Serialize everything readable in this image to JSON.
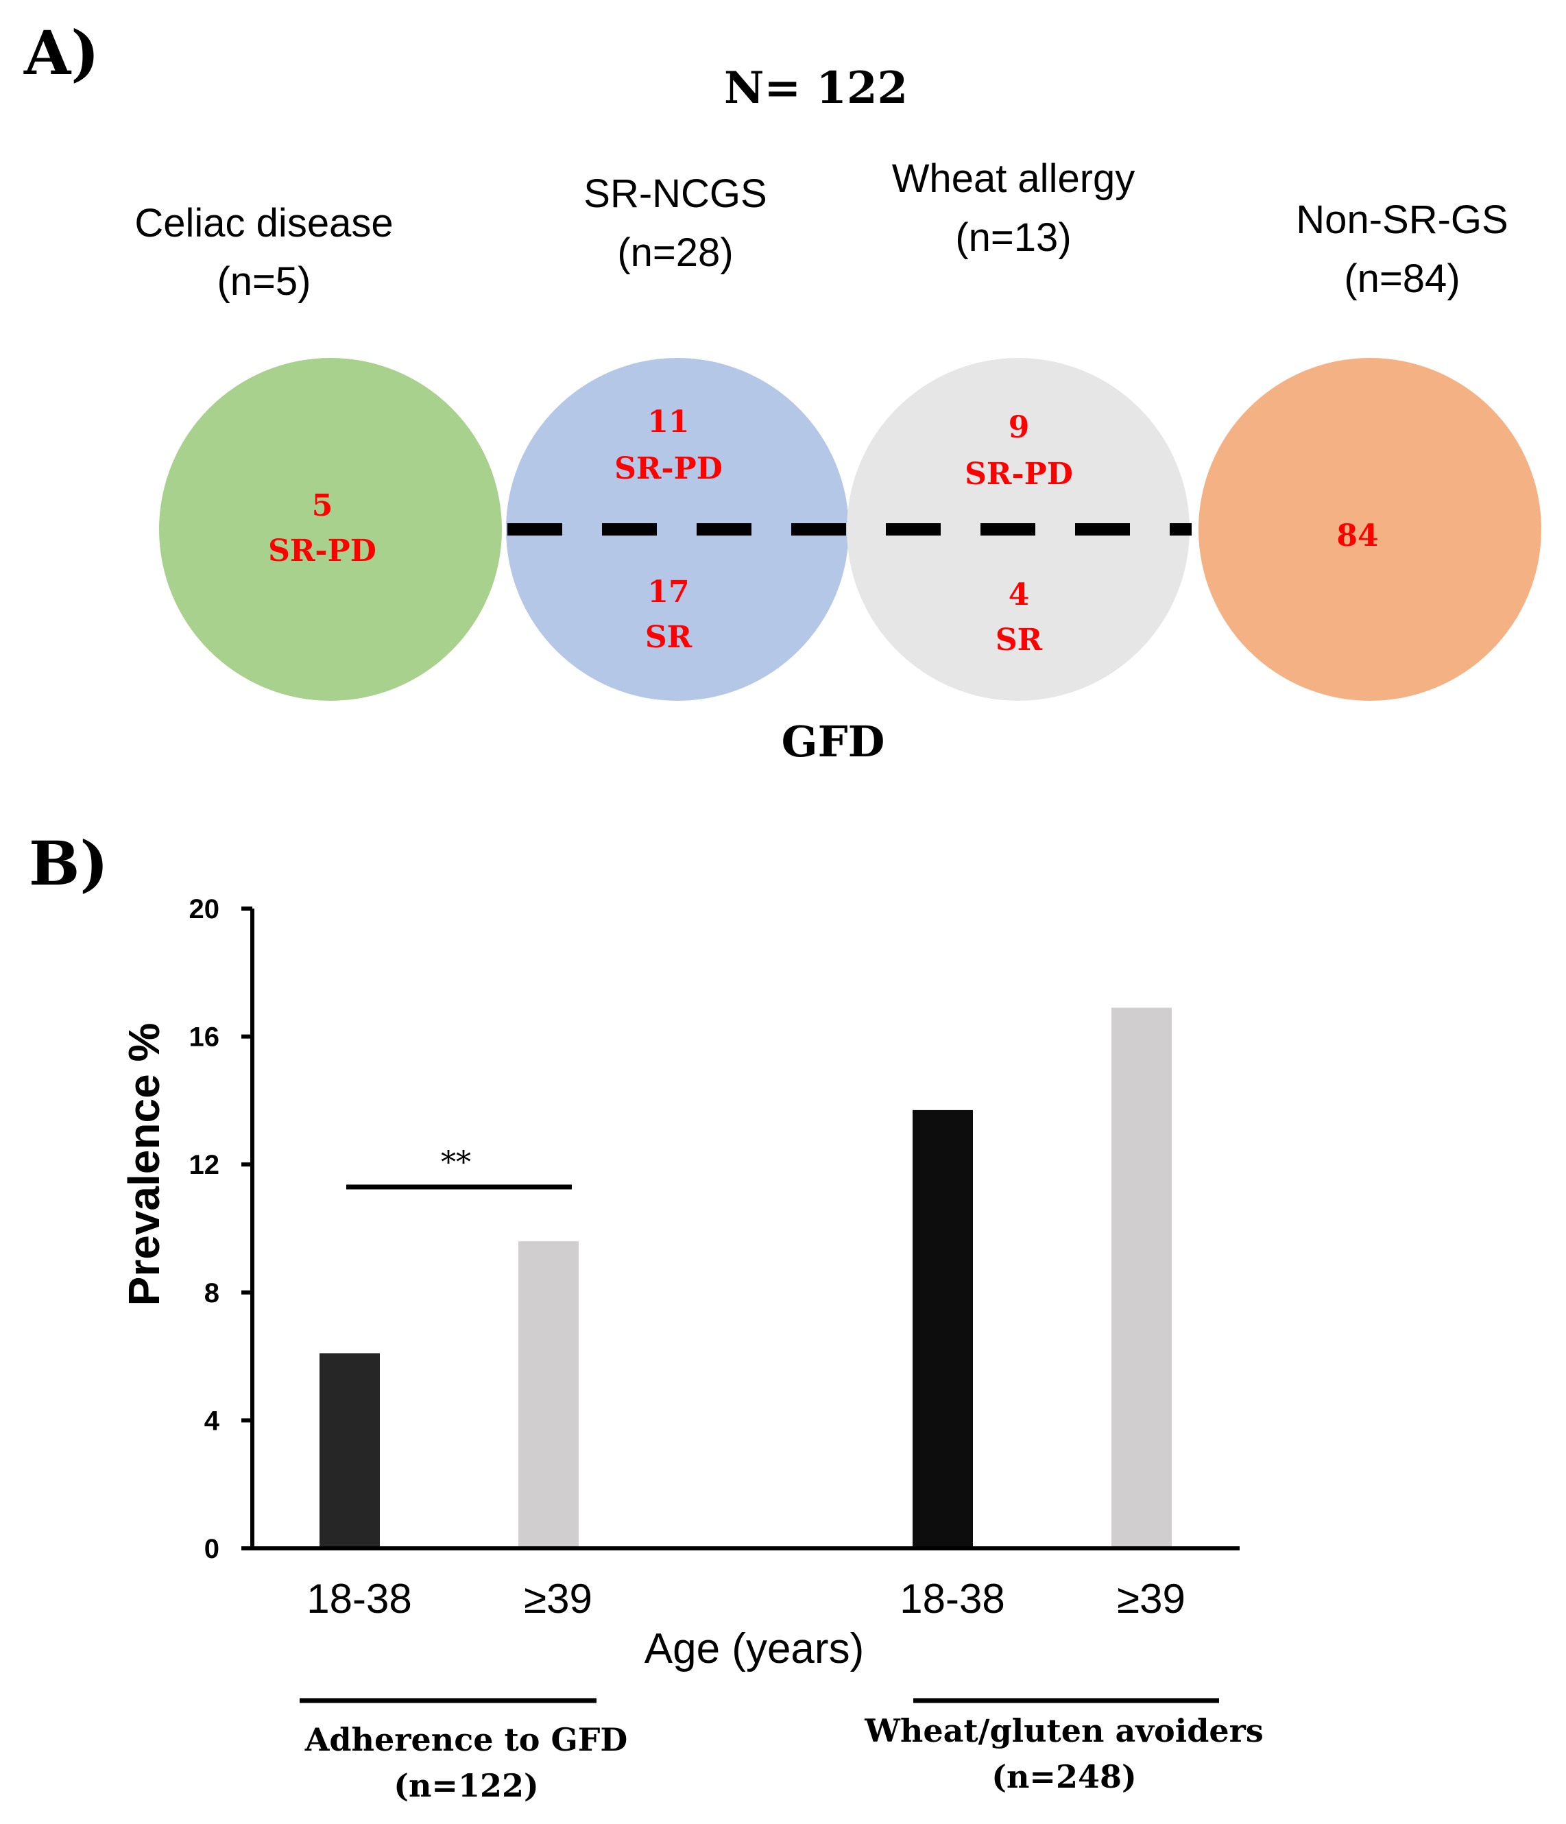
{
  "panel_a": {
    "label": "A)",
    "total": "N= 122",
    "bottom_label": "GFD",
    "groups": [
      {
        "name": "Celiac disease",
        "n": "(n=5)",
        "color": "#a9d18e",
        "values": [
          {
            "count": "5",
            "text": "SR-PD"
          }
        ]
      },
      {
        "name": "SR-NCGS",
        "n": "(n=28)",
        "color": "#b4c7e7",
        "values": [
          {
            "count": "11",
            "text": "SR-PD"
          },
          {
            "count": "17",
            "text": "SR"
          }
        ]
      },
      {
        "name": "Wheat allergy",
        "n": "(n=13)",
        "color": "#e7e6e6",
        "values": [
          {
            "count": "9",
            "text": "SR-PD"
          },
          {
            "count": "4",
            "text": "SR"
          }
        ]
      },
      {
        "name": "Non-SR-GS",
        "n": "(n=84)",
        "color": "#f4b183",
        "values": [
          {
            "count": "84",
            "text": ""
          }
        ]
      }
    ],
    "number_color": "#ff0000"
  },
  "chart_data": {
    "type": "bar",
    "panel_label": "B)",
    "title": "",
    "xlabel": "Age (years)",
    "ylabel": "Prevalence %",
    "ylim": [
      0,
      20
    ],
    "yticks": [
      0,
      4,
      8,
      12,
      16,
      20
    ],
    "categories": [
      "18-38",
      "≥39",
      "18-38",
      "≥39"
    ],
    "values": [
      6.1,
      9.6,
      13.7,
      16.9
    ],
    "colors": [
      "#262626",
      "#d0cece",
      "#0d0d0d",
      "#d0cece"
    ],
    "groups": [
      {
        "label": "Adherence to GFD",
        "n": "(n=122)"
      },
      {
        "label": "Wheat/gluten avoiders",
        "n": "(n=248)"
      }
    ],
    "significance": "**",
    "grid": false
  }
}
